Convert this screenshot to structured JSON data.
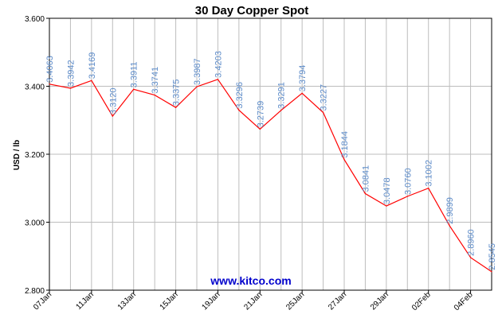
{
  "chart_data": {
    "type": "line",
    "title": "30 Day Copper Spot",
    "xlabel": "",
    "ylabel": "USD / lb",
    "ylim": [
      2.8,
      3.6
    ],
    "y_ticks": [
      "3.600",
      "3.400",
      "3.200",
      "3.000",
      "2.800"
    ],
    "x_tick_labels": [
      "07Jan",
      "11Jan",
      "13Jan",
      "15Jan",
      "19Jan",
      "21Jan",
      "25Jan",
      "27Jan",
      "29Jan",
      "02Feb",
      "04Feb"
    ],
    "grid": true,
    "series": [
      {
        "color": "#ff0000",
        "label_color": "#5b8ac8",
        "values": [
          3.4063,
          3.3942,
          3.4169,
          3.312,
          3.3911,
          3.3741,
          3.3375,
          3.3987,
          3.4203,
          3.3296,
          3.2739,
          3.3291,
          3.3794,
          3.3227,
          3.1844,
          3.0841,
          3.0478,
          3.076,
          3.1002,
          2.9899,
          2.896,
          2.8545
        ],
        "labels": [
          "3.4063",
          "3.3942",
          "3.4169",
          "3.3120",
          "3.3911",
          "3.3741",
          "3.3375",
          "3.3987",
          "3.4203",
          "3.3296",
          "3.2739",
          "3.3291",
          "3.3794",
          "3.3227",
          "3.1844",
          "3.0841",
          "3.0478",
          "3.0760",
          "3.1002",
          "2.9899",
          "2.8960",
          "2.8545"
        ]
      }
    ]
  },
  "watermark": "www.kitco.com"
}
